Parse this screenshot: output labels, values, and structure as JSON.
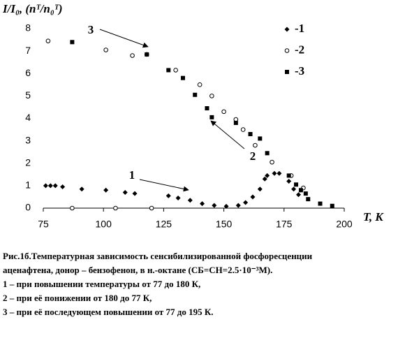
{
  "chart_data": {
    "type": "scatter",
    "y_label": "I/I₀, (nᵀ/n₀ᵀ)",
    "x_label": "T, K",
    "xlim": [
      75,
      200
    ],
    "xticks": [
      75,
      100,
      125,
      150,
      175,
      200
    ],
    "ylim": [
      0,
      8
    ],
    "yticks": [
      0,
      1,
      2,
      3,
      4,
      5,
      6,
      7,
      8
    ],
    "series": [
      {
        "name": "-1",
        "color": "#000000",
        "marker": "diamond",
        "x": [
          76,
          78,
          80,
          83,
          91,
          101,
          109,
          113,
          127,
          131,
          136,
          141,
          146,
          151,
          156,
          159,
          162,
          165,
          167,
          168,
          171,
          173,
          177,
          179,
          181
        ],
        "values": [
          1.0,
          1.0,
          1.0,
          0.95,
          0.85,
          0.8,
          0.7,
          0.65,
          0.55,
          0.45,
          0.35,
          0.2,
          0.12,
          0.08,
          0.12,
          0.25,
          0.5,
          0.85,
          1.3,
          1.45,
          1.55,
          1.55,
          1.2,
          0.85,
          0.6
        ]
      },
      {
        "name": "-2",
        "color": "#000000",
        "marker": "circle",
        "x": [
          77,
          101,
          112,
          118,
          130,
          140,
          145,
          150,
          155,
          158,
          163,
          170,
          178,
          183,
          87,
          105,
          120
        ],
        "values": [
          7.45,
          7.05,
          6.8,
          6.85,
          6.15,
          5.5,
          5.0,
          4.3,
          3.95,
          3.5,
          2.8,
          2.05,
          1.45,
          0.9,
          0.0,
          0.0,
          0.0
        ]
      },
      {
        "name": "-3",
        "color": "#000000",
        "marker": "square",
        "x": [
          87,
          118,
          127,
          133,
          138,
          143,
          145,
          155,
          161,
          165,
          168,
          177,
          180,
          182,
          184,
          185,
          190,
          195
        ],
        "values": [
          7.4,
          6.85,
          6.15,
          5.8,
          5.05,
          4.45,
          4.05,
          3.8,
          3.3,
          3.1,
          2.45,
          1.45,
          1.05,
          0.8,
          0.65,
          0.4,
          0.2,
          0.1
        ]
      }
    ],
    "annotations": [
      "3",
      "2",
      "1"
    ]
  },
  "caption": [
    "Рис.1б.Температурная зависимость сенсибилизированной фосфоресценции",
    "аценафтена, донор – бензофенон,  в н.-октане (CБ=CН=2.5·10⁻³М).",
    "1 – при повышении температуры от 77 до 180 К,",
    "2 – при её понижении от 180 до 77 К,",
    "3 – при её последующем повышении от 77 до 195 К."
  ]
}
